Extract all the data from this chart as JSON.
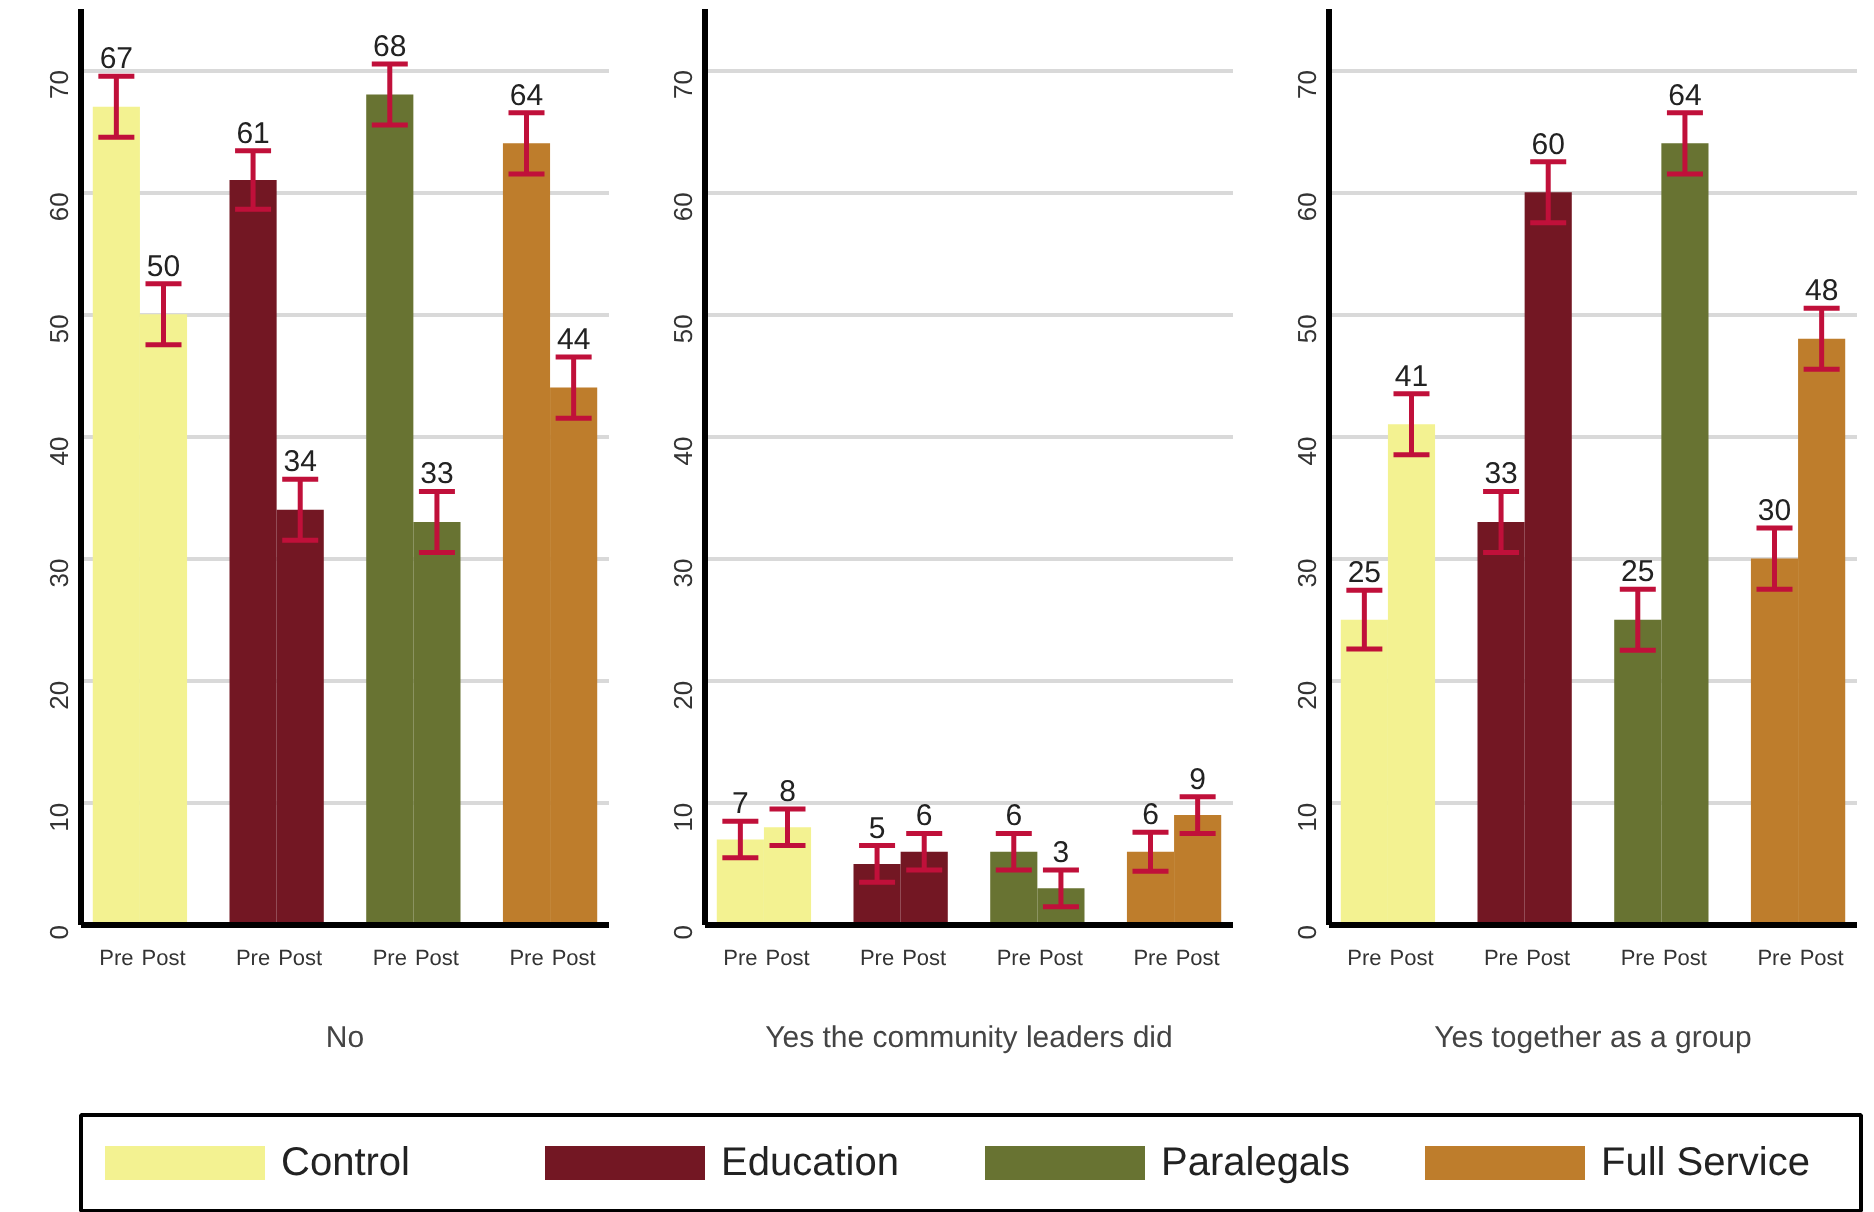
{
  "chart_data": [
    {
      "type": "bar",
      "xlabel": "No",
      "categories": [
        "Pre",
        "Post",
        "Pre",
        "Post",
        "Pre",
        "Post",
        "Pre",
        "Post"
      ],
      "ylim": [
        0,
        75
      ],
      "yticks": [
        0,
        10,
        20,
        30,
        40,
        50,
        60,
        70
      ],
      "grid": "y",
      "data_labels": true,
      "legend": "bottom",
      "series": [
        {
          "name": "Control",
          "color": "#f3f291",
          "values": [
            67,
            50,
            null,
            null,
            null,
            null,
            null,
            null
          ],
          "errors": [
            2.5,
            2.5,
            null,
            null,
            null,
            null,
            null,
            null
          ]
        },
        {
          "name": "Education",
          "color": "#731723",
          "values": [
            null,
            null,
            61,
            34,
            null,
            null,
            null,
            null
          ],
          "errors": [
            null,
            null,
            2.4,
            2.5,
            null,
            null,
            null,
            null
          ]
        },
        {
          "name": "Paralegals",
          "color": "#687332",
          "values": [
            null,
            null,
            null,
            null,
            68,
            33,
            null,
            null
          ],
          "errors": [
            null,
            null,
            null,
            null,
            2.5,
            2.5,
            null,
            null
          ]
        },
        {
          "name": "Full Service",
          "color": "#be7d2c",
          "values": [
            null,
            null,
            null,
            null,
            null,
            null,
            64,
            44
          ],
          "errors": [
            null,
            null,
            null,
            null,
            null,
            null,
            2.5,
            2.5
          ]
        }
      ]
    },
    {
      "type": "bar",
      "xlabel": "Yes the community leaders did",
      "categories": [
        "Pre",
        "Post",
        "Pre",
        "Post",
        "Pre",
        "Post",
        "Pre",
        "Post"
      ],
      "ylim": [
        0,
        75
      ],
      "yticks": [
        0,
        10,
        20,
        30,
        40,
        50,
        60,
        70
      ],
      "grid": "y",
      "data_labels": true,
      "series": [
        {
          "color": "#f3f291",
          "values": [
            7,
            8,
            null,
            null,
            null,
            null,
            null,
            null
          ],
          "errors": [
            1.5,
            1.5,
            null,
            null,
            null,
            null,
            null,
            null
          ]
        },
        {
          "color": "#731723",
          "values": [
            null,
            null,
            5,
            6,
            null,
            null,
            null,
            null
          ],
          "errors": [
            null,
            null,
            1.5,
            1.5,
            null,
            null,
            null,
            null
          ]
        },
        {
          "color": "#687332",
          "values": [
            null,
            null,
            null,
            null,
            6,
            3,
            null,
            null
          ],
          "errors": [
            null,
            null,
            null,
            null,
            1.5,
            1.5,
            null,
            null
          ]
        },
        {
          "color": "#be7d2c",
          "values": [
            null,
            null,
            null,
            null,
            null,
            null,
            6,
            9
          ],
          "errors": [
            null,
            null,
            null,
            null,
            null,
            null,
            1.6,
            1.5
          ]
        }
      ]
    },
    {
      "type": "bar",
      "xlabel": "Yes together as a group",
      "categories": [
        "Pre",
        "Post",
        "Pre",
        "Post",
        "Pre",
        "Post",
        "Pre",
        "Post"
      ],
      "ylim": [
        0,
        75
      ],
      "yticks": [
        0,
        10,
        20,
        30,
        40,
        50,
        60,
        70
      ],
      "grid": "y",
      "data_labels": true,
      "series": [
        {
          "color": "#f3f291",
          "values": [
            25,
            41,
            null,
            null,
            null,
            null,
            null,
            null
          ],
          "errors": [
            2.4,
            2.5,
            null,
            null,
            null,
            null,
            null,
            null
          ]
        },
        {
          "color": "#731723",
          "values": [
            null,
            null,
            33,
            60,
            null,
            null,
            null,
            null
          ],
          "errors": [
            null,
            null,
            2.5,
            2.5,
            null,
            null,
            null,
            null
          ]
        },
        {
          "color": "#687332",
          "values": [
            null,
            null,
            null,
            null,
            25,
            64,
            null,
            null
          ],
          "errors": [
            null,
            null,
            null,
            null,
            2.5,
            2.5,
            null,
            null
          ]
        },
        {
          "color": "#be7d2c",
          "values": [
            null,
            null,
            null,
            null,
            null,
            null,
            30,
            48
          ],
          "errors": [
            null,
            null,
            null,
            null,
            null,
            null,
            2.5,
            2.5
          ]
        }
      ]
    }
  ]
}
